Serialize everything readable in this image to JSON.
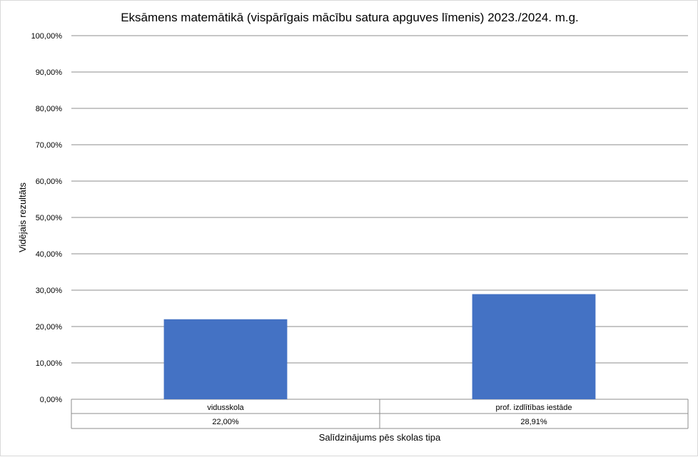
{
  "chart_data": {
    "type": "bar",
    "title": "Eksāmens matemātikā (vispārīgais mācību satura apguves līmenis) 2023./2024. m.g.",
    "xlabel": "Salīdzinājums pēs skolas tipa",
    "ylabel": "Vidējais rezultāts",
    "categories": [
      "vidusskola",
      "prof. izdlītības iestāde"
    ],
    "values": [
      22.0,
      28.91
    ],
    "data_labels": [
      "22,00%",
      "28,91%"
    ],
    "ylim": [
      0,
      100
    ],
    "yticks": [
      "0,00%",
      "10,00%",
      "20,00%",
      "30,00%",
      "40,00%",
      "50,00%",
      "60,00%",
      "70,00%",
      "80,00%",
      "90,00%",
      "100,00%"
    ],
    "grid": true,
    "data_table": true,
    "bar_color": "#4472c4"
  }
}
